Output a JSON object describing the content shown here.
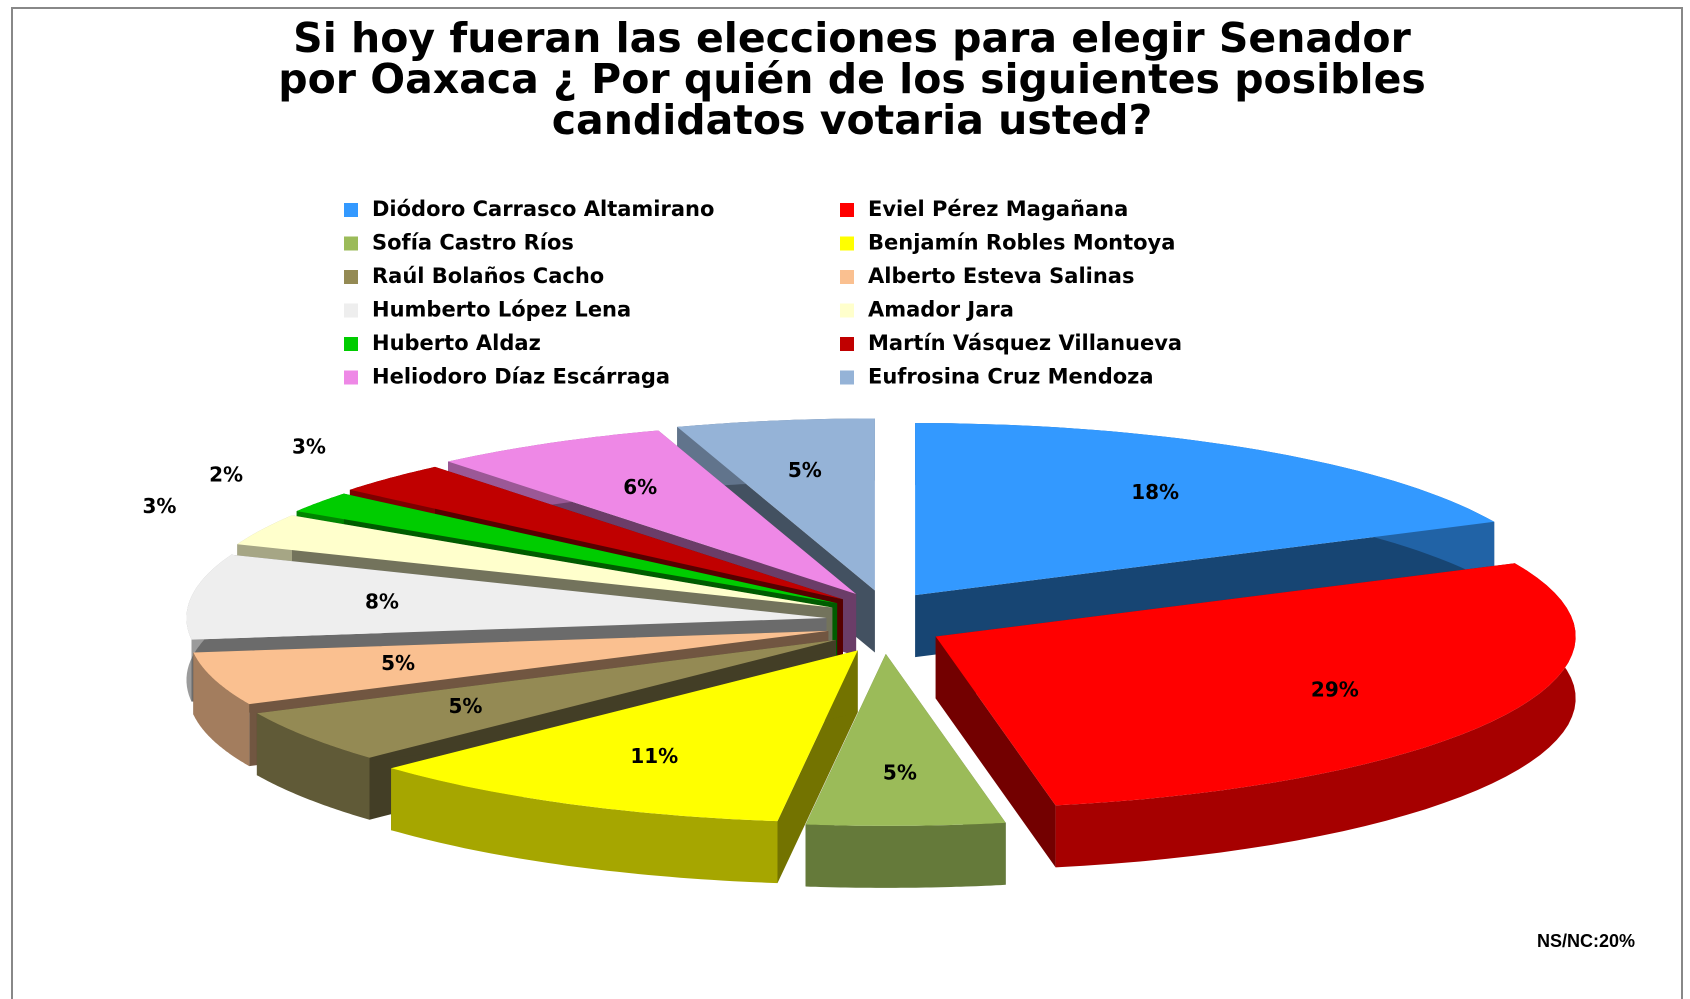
{
  "chart_data": {
    "type": "pie3d",
    "title": "Si hoy fueran las elecciones para elegir Senador por Oaxaca ¿ Por quién de los siguientes posibles candidatos votaria usted?",
    "categories": [
      "Diódoro Carrasco Altamirano",
      "Eviel Pérez Magañana",
      "Sofía Castro Ríos",
      "Benjamín Robles Montoya",
      "Raúl Bolaños Cacho",
      "Alberto Esteva Salinas",
      "Humberto López Lena",
      "Amador Jara",
      "Huberto Aldaz",
      "Martín Vásquez Villanueva",
      "Heliodoro Díaz Escárraga",
      "Eufrosina Cruz Mendoza"
    ],
    "values": [
      18,
      29,
      5,
      11,
      5,
      5,
      8,
      3,
      2,
      3,
      6,
      5
    ],
    "value_labels": [
      "18%",
      "29%",
      "5%",
      "11%",
      "5%",
      "5%",
      "8%",
      "3%",
      "2%",
      "3%",
      "6%",
      "5%"
    ],
    "colors": [
      "#3399ff",
      "#ff0000",
      "#9bbb59",
      "#ffff00",
      "#948a54",
      "#fac090",
      "#eeeeee",
      "#ffffcc",
      "#00cc00",
      "#c00000",
      "#ee88e6",
      "#95b3d7"
    ],
    "legend": "top",
    "annotation": "NS/NC:20%"
  }
}
